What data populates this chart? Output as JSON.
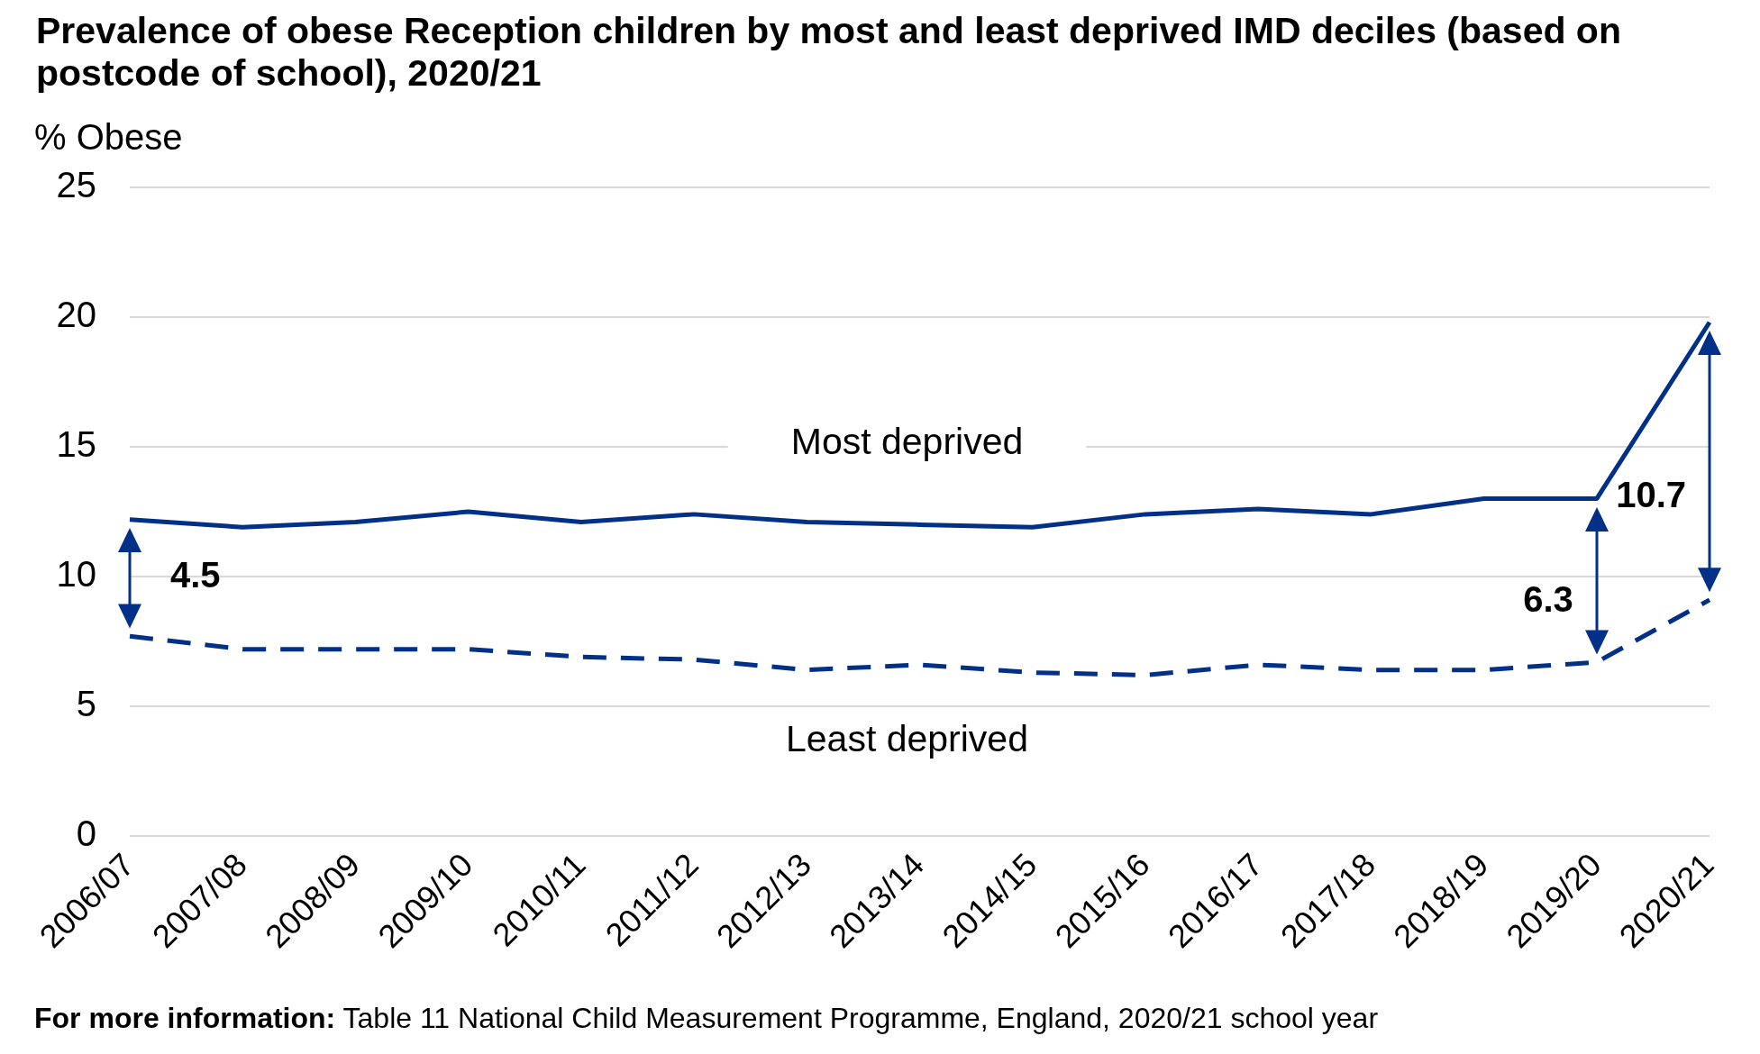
{
  "chart_data": {
    "type": "line",
    "title": "Prevalence of obese Reception children by most and least deprived IMD deciles (based on postcode of school), 2020/21",
    "ylabel": "% Obese",
    "categories": [
      "2006/07",
      "2007/08",
      "2008/09",
      "2009/10",
      "2010/11",
      "2011/12",
      "2012/13",
      "2013/14",
      "2014/15",
      "2015/16",
      "2016/17",
      "2017/18",
      "2018/19",
      "2019/20",
      "2020/21"
    ],
    "series": [
      {
        "name": "Most deprived",
        "color": "#003087",
        "line_style": "solid",
        "values": [
          12.2,
          11.9,
          12.1,
          12.5,
          12.1,
          12.4,
          12.1,
          12.0,
          11.9,
          12.4,
          12.6,
          12.4,
          13.0,
          13.0,
          19.8
        ]
      },
      {
        "name": "Least deprived",
        "color": "#003087",
        "line_style": "dashed",
        "values": [
          7.7,
          7.2,
          7.2,
          7.2,
          6.9,
          6.8,
          6.4,
          6.6,
          6.3,
          6.2,
          6.6,
          6.4,
          6.4,
          6.7,
          9.1
        ]
      }
    ],
    "ylim": [
      0,
      25
    ],
    "yticks": [
      0,
      5,
      10,
      15,
      20,
      25
    ],
    "grid": "y",
    "marker": "none",
    "annotations": [
      {
        "text": "4.5",
        "x": "2006/07",
        "y": 7.7
      },
      {
        "text": "6.3",
        "x": "2019/20",
        "y": 6.7
      },
      {
        "text": "10.7",
        "x": "2020/21",
        "y": 9.1
      },
      "For more information: Table 11 National Child Measurement Programme, England, 2020/21 school year"
    ]
  }
}
